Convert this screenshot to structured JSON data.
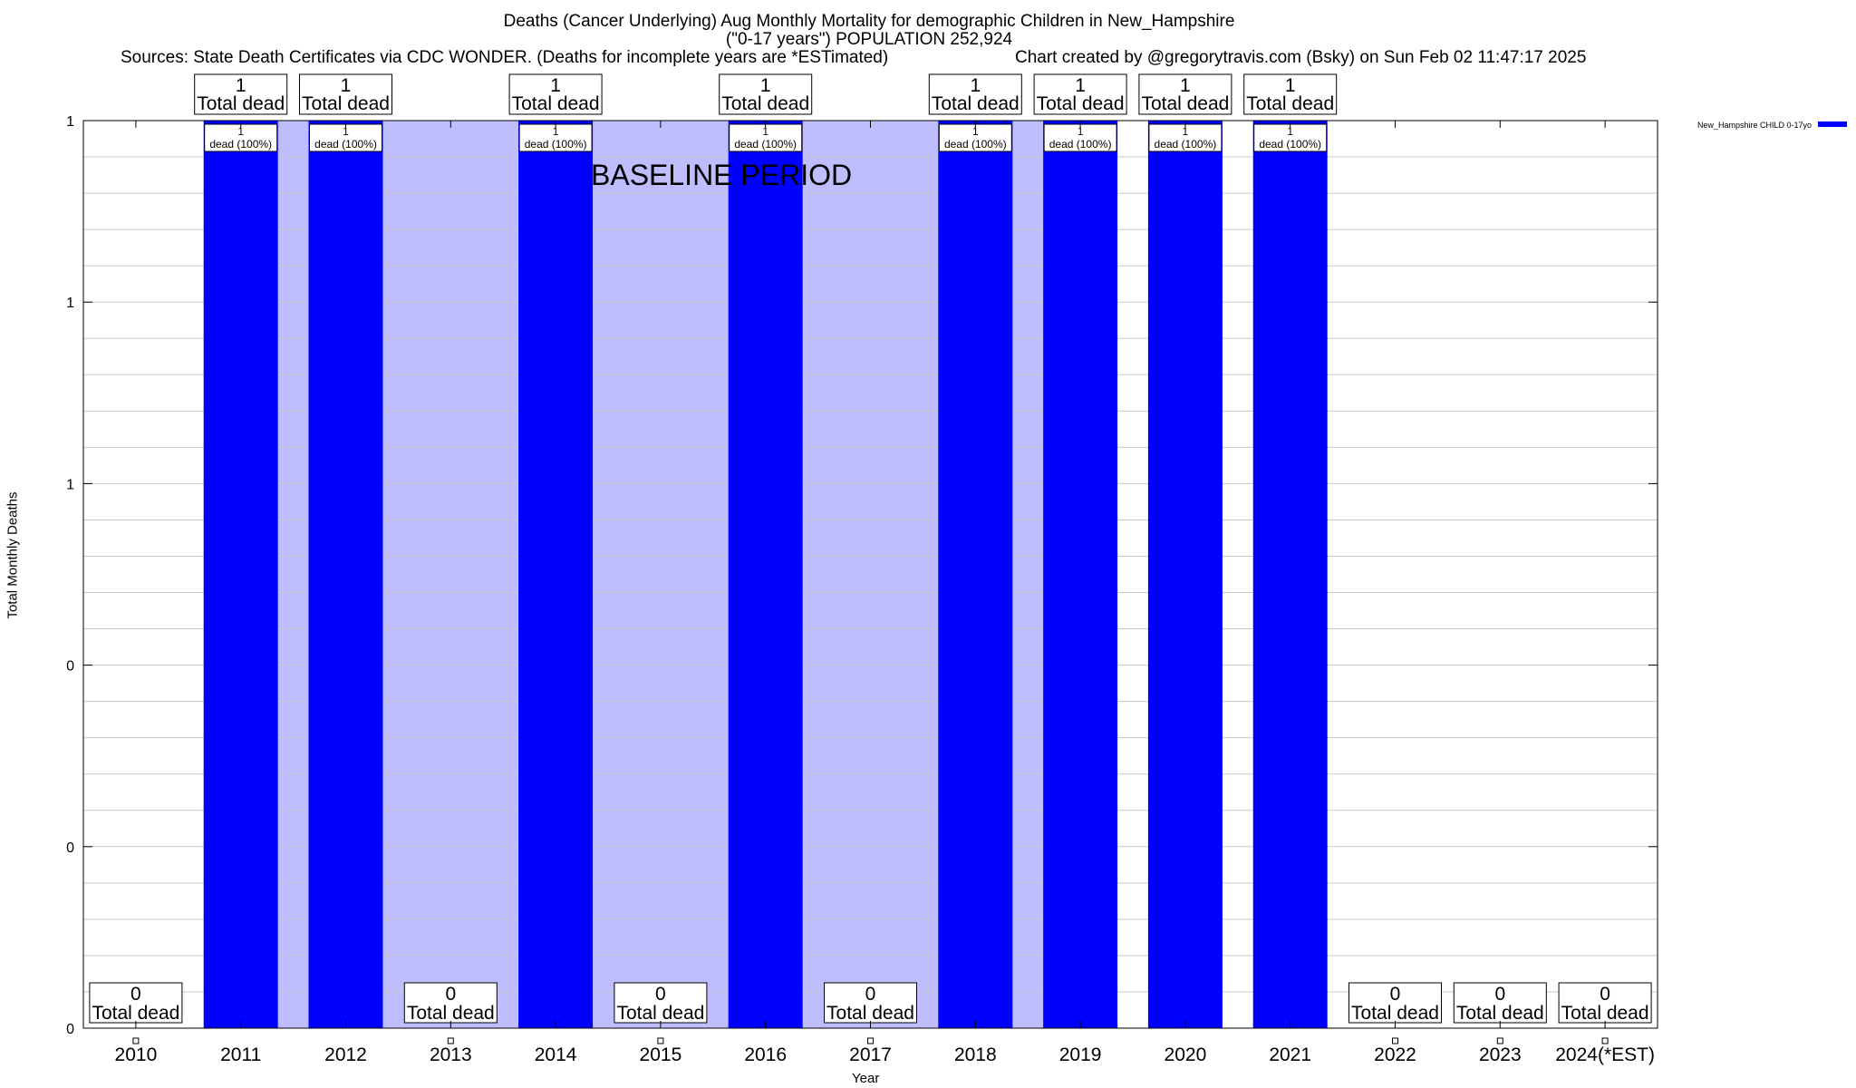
{
  "title": {
    "line1": "Deaths (Cancer Underlying) Aug Monthly Mortality for demographic Children in New_Hampshire",
    "line2": "(\"0-17 years\") POPULATION 252,924",
    "sources": "Sources: State Death Certificates via CDC WONDER. (Deaths for incomplete years are *ESTimated)",
    "credit": "Chart created by @gregorytravis.com (Bsky) on Sun Feb 02 11:47:17 2025"
  },
  "chart_data": {
    "type": "bar",
    "xlabel": "Year",
    "ylabel": "Total Monthly Deaths",
    "ylim": [
      0,
      1
    ],
    "y_ticks": [
      {
        "value": 0,
        "label": "0"
      },
      {
        "value": 0.2,
        "label": "0"
      },
      {
        "value": 0.4,
        "label": "0"
      },
      {
        "value": 0.6,
        "label": "1"
      },
      {
        "value": 0.8,
        "label": "1"
      },
      {
        "value": 1,
        "label": "1"
      }
    ],
    "grid": true,
    "legend": {
      "position": "top-right",
      "entries": [
        "New_Hampshire CHILD 0-17yo"
      ]
    },
    "categories": [
      "2010",
      "2011",
      "2012",
      "2013",
      "2014",
      "2015",
      "2016",
      "2017",
      "2018",
      "2019",
      "2020",
      "2021",
      "2022",
      "2023",
      "2024(*EST)"
    ],
    "series": [
      {
        "name": "New_Hampshire CHILD 0-17yo",
        "color": "#0000ff",
        "values": [
          0,
          1,
          1,
          0,
          1,
          0,
          1,
          0,
          1,
          1,
          1,
          1,
          0,
          0,
          0
        ]
      }
    ],
    "total_label_text": "Total dead",
    "bar_label_text": "dead (100%)",
    "annotations": [
      {
        "text": "BASELINE PERIOD",
        "x_start": "2011",
        "x_end": "2019",
        "color": "#bebeff"
      }
    ]
  }
}
